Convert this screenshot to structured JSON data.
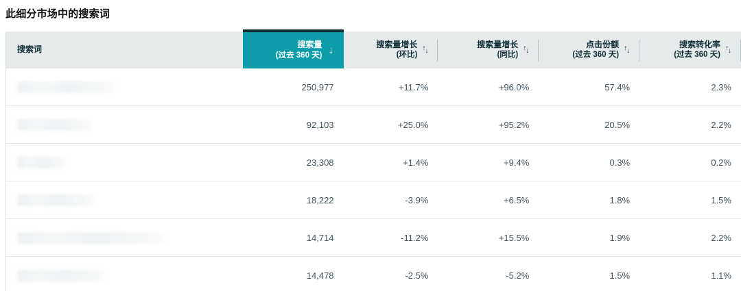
{
  "page": {
    "title": "此细分市场中的搜索词"
  },
  "table": {
    "columns": {
      "term": {
        "label": "搜索词",
        "sub": ""
      },
      "volume": {
        "label": "搜索量",
        "sub": "(过去 360 天)",
        "sorted": "desc"
      },
      "growth_mom": {
        "label": "搜索量增长",
        "sub": "(环比)"
      },
      "growth_yoy": {
        "label": "搜索量增长",
        "sub": "(同比)"
      },
      "click_share": {
        "label": "点击份额",
        "sub": "(过去 360 天)"
      },
      "conversion": {
        "label": "搜索转化率",
        "sub": "(过去 360 天)"
      }
    },
    "sort_icons": {
      "sorted": "down-arrow",
      "unsorted": "up-down-arrows"
    },
    "rows": [
      {
        "term_redacted": true,
        "redaction_width": 141,
        "volume": "250,977",
        "growth_mom": "+11.7%",
        "growth_yoy": "+96.0%",
        "click_share": "57.4%",
        "conversion": "2.3%"
      },
      {
        "term_redacted": true,
        "redaction_width": 108,
        "volume": "92,103",
        "growth_mom": "+25.0%",
        "growth_yoy": "+95.2%",
        "click_share": "20.5%",
        "conversion": "2.2%"
      },
      {
        "term_redacted": true,
        "redaction_width": 71,
        "volume": "23,308",
        "growth_mom": "+1.4%",
        "growth_yoy": "+9.4%",
        "click_share": "0.3%",
        "conversion": "0.2%"
      },
      {
        "term_redacted": true,
        "redaction_width": 112,
        "volume": "18,222",
        "growth_mom": "-3.9%",
        "growth_yoy": "+6.5%",
        "click_share": "1.8%",
        "conversion": "1.5%"
      },
      {
        "term_redacted": true,
        "redaction_width": 213,
        "volume": "14,714",
        "growth_mom": "-11.2%",
        "growth_yoy": "+15.5%",
        "click_share": "1.9%",
        "conversion": "2.2%"
      },
      {
        "term_redacted": true,
        "redaction_width": 127,
        "volume": "14,478",
        "growth_mom": "-2.5%",
        "growth_yoy": "-5.2%",
        "click_share": "1.5%",
        "conversion": "1.1%"
      }
    ],
    "colors": {
      "sorted_column_teal": "#0d9daa",
      "sorted_column_top_bar": "#0d2b31",
      "header_background": "#e7eaea",
      "header_text": "#0f2e36",
      "body_text": "#44545f",
      "row_divider": "#e2e6e6"
    }
  }
}
